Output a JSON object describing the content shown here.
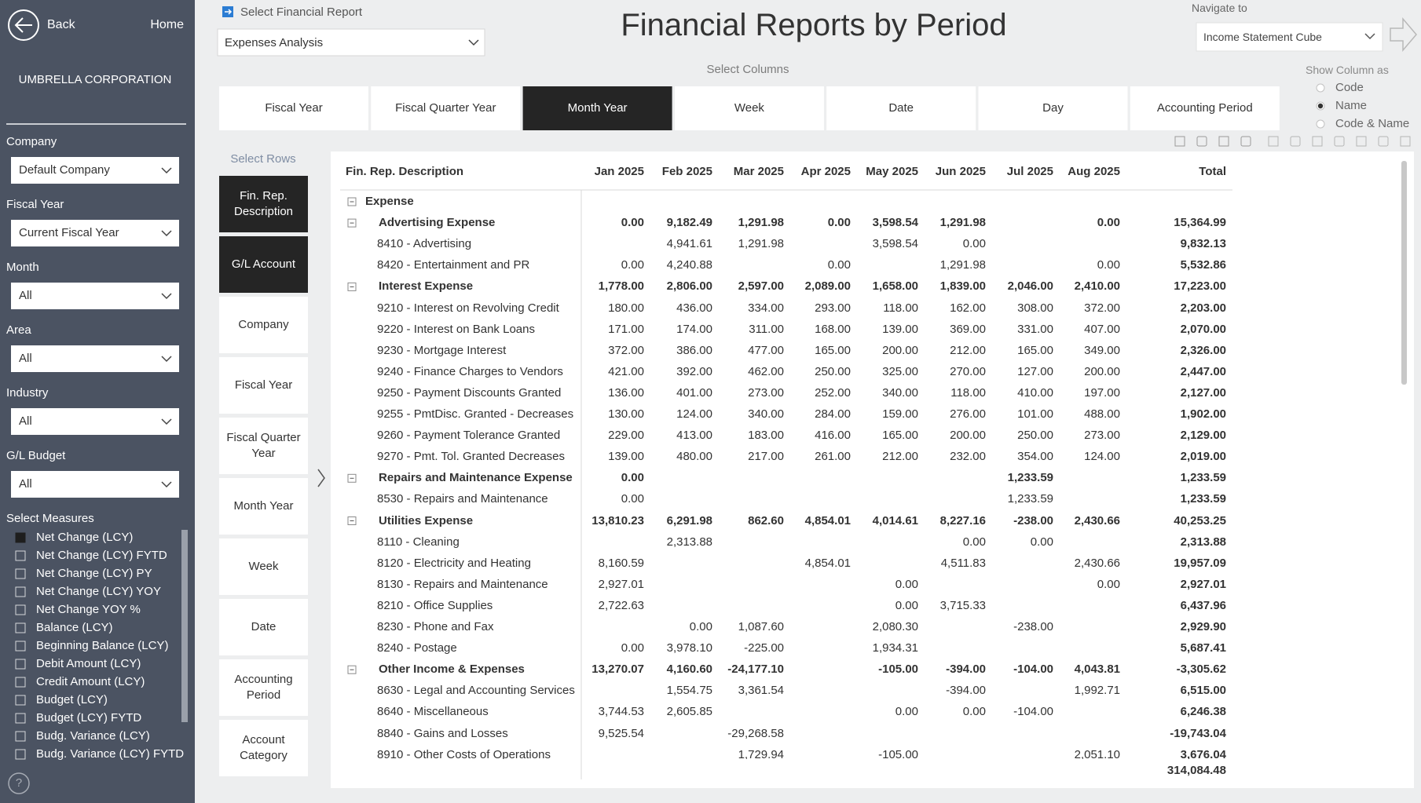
{
  "sidebar": {
    "back": "Back",
    "home": "Home",
    "company": "UMBRELLA CORPORATION",
    "filters": [
      {
        "label": "Company",
        "value": "Default Company"
      },
      {
        "label": "Fiscal Year",
        "value": "Current Fiscal Year"
      },
      {
        "label": "Month",
        "value": "All"
      },
      {
        "label": "Area",
        "value": "All"
      },
      {
        "label": "Industry",
        "value": "All"
      },
      {
        "label": "G/L Budget",
        "value": "All"
      }
    ],
    "measures_title": "Select Measures",
    "measures": [
      "Net Change (LCY)",
      "Net Change (LCY) FYTD",
      "Net Change (LCY) PY",
      "Net Change (LCY) YOY",
      "Net Change YOY %",
      "Balance (LCY)",
      "Beginning Balance (LCY)",
      "Debit Amount (LCY)",
      "Credit Amount (LCY)",
      "Budget (LCY)",
      "Budget (LCY) FYTD",
      "Budg. Variance (LCY)",
      "Budg. Variance (LCY) FYTD"
    ],
    "selected_measure": 0,
    "help": "?"
  },
  "header": {
    "report_label": "Select Financial Report",
    "report_value": "Expenses Analysis",
    "title": "Financial Reports by Period",
    "navigate_label": "Navigate to",
    "navigate_value": "Income Statement Cube"
  },
  "columns": {
    "label": "Select Columns",
    "options": [
      "Fiscal Year",
      "Fiscal Quarter Year",
      "Month Year",
      "Week",
      "Date",
      "Day",
      "Accounting Period"
    ],
    "active": 2
  },
  "show_column": {
    "label": "Show Column as",
    "options": [
      "Code",
      "Name",
      "Code & Name"
    ],
    "selected": 1
  },
  "rows_selector": {
    "label": "Select Rows",
    "options": [
      "Fin. Rep. Description",
      "G/L Account",
      "Company",
      "Fiscal Year",
      "Fiscal Quarter Year",
      "Month Year",
      "Week",
      "Date",
      "Accounting Period",
      "Account Category"
    ],
    "active": [
      0,
      1
    ]
  },
  "table": {
    "headers": [
      "Fin. Rep. Description",
      "Jan 2025",
      "Feb 2025",
      "Mar 2025",
      "Apr 2025",
      "May 2025",
      "Jun 2025",
      "Jul 2025",
      "Aug 2025",
      "Total"
    ],
    "rows": [
      {
        "label": "Expense",
        "level": 0,
        "values": [
          null,
          null,
          null,
          null,
          null,
          null,
          null,
          null,
          null
        ]
      },
      {
        "label": "Advertising Expense",
        "level": 1,
        "values": [
          "0.00",
          "9,182.49",
          "1,291.98",
          "0.00",
          "3,598.54",
          "1,291.98",
          null,
          "0.00",
          "15,364.99"
        ]
      },
      {
        "label": "8410 - Advertising",
        "level": 2,
        "values": [
          null,
          "4,941.61",
          "1,291.98",
          null,
          "3,598.54",
          "0.00",
          null,
          null,
          "9,832.13"
        ]
      },
      {
        "label": "8420 - Entertainment and PR",
        "level": 2,
        "values": [
          "0.00",
          "4,240.88",
          null,
          "0.00",
          null,
          "1,291.98",
          null,
          "0.00",
          "5,532.86"
        ]
      },
      {
        "label": "Interest Expense",
        "level": 1,
        "values": [
          "1,778.00",
          "2,806.00",
          "2,597.00",
          "2,089.00",
          "1,658.00",
          "1,839.00",
          "2,046.00",
          "2,410.00",
          "17,223.00"
        ]
      },
      {
        "label": "9210 - Interest on Revolving Credit",
        "level": 2,
        "values": [
          "180.00",
          "436.00",
          "334.00",
          "293.00",
          "118.00",
          "162.00",
          "308.00",
          "372.00",
          "2,203.00"
        ]
      },
      {
        "label": "9220 - Interest on Bank Loans",
        "level": 2,
        "values": [
          "171.00",
          "174.00",
          "311.00",
          "168.00",
          "139.00",
          "369.00",
          "331.00",
          "407.00",
          "2,070.00"
        ]
      },
      {
        "label": "9230 - Mortgage Interest",
        "level": 2,
        "values": [
          "372.00",
          "386.00",
          "477.00",
          "165.00",
          "200.00",
          "212.00",
          "165.00",
          "349.00",
          "2,326.00"
        ]
      },
      {
        "label": "9240 - Finance Charges to Vendors",
        "level": 2,
        "values": [
          "421.00",
          "392.00",
          "462.00",
          "250.00",
          "325.00",
          "270.00",
          "127.00",
          "200.00",
          "2,447.00"
        ]
      },
      {
        "label": "9250 - Payment Discounts Granted",
        "level": 2,
        "values": [
          "136.00",
          "401.00",
          "273.00",
          "252.00",
          "340.00",
          "118.00",
          "410.00",
          "197.00",
          "2,127.00"
        ]
      },
      {
        "label": "9255 - PmtDisc. Granted - Decreases",
        "level": 2,
        "values": [
          "130.00",
          "124.00",
          "340.00",
          "284.00",
          "159.00",
          "276.00",
          "101.00",
          "488.00",
          "1,902.00"
        ]
      },
      {
        "label": "9260 - Payment Tolerance Granted",
        "level": 2,
        "values": [
          "229.00",
          "413.00",
          "183.00",
          "416.00",
          "165.00",
          "200.00",
          "250.00",
          "273.00",
          "2,129.00"
        ]
      },
      {
        "label": "9270 - Pmt. Tol. Granted Decreases",
        "level": 2,
        "values": [
          "139.00",
          "480.00",
          "217.00",
          "261.00",
          "212.00",
          "232.00",
          "354.00",
          "124.00",
          "2,019.00"
        ]
      },
      {
        "label": "Repairs and Maintenance Expense",
        "level": 1,
        "values": [
          "0.00",
          null,
          null,
          null,
          null,
          null,
          "1,233.59",
          null,
          "1,233.59"
        ]
      },
      {
        "label": "8530 - Repairs and Maintenance",
        "level": 2,
        "values": [
          "0.00",
          null,
          null,
          null,
          null,
          null,
          "1,233.59",
          null,
          "1,233.59"
        ]
      },
      {
        "label": "Utilities Expense",
        "level": 1,
        "values": [
          "13,810.23",
          "6,291.98",
          "862.60",
          "4,854.01",
          "4,014.61",
          "8,227.16",
          "-238.00",
          "2,430.66",
          "40,253.25"
        ]
      },
      {
        "label": "8110 - Cleaning",
        "level": 2,
        "values": [
          null,
          "2,313.88",
          null,
          null,
          null,
          "0.00",
          "0.00",
          null,
          "2,313.88"
        ]
      },
      {
        "label": "8120 - Electricity and Heating",
        "level": 2,
        "values": [
          "8,160.59",
          null,
          null,
          "4,854.01",
          null,
          "4,511.83",
          null,
          "2,430.66",
          "19,957.09"
        ]
      },
      {
        "label": "8130 - Repairs and Maintenance",
        "level": 2,
        "values": [
          "2,927.01",
          null,
          null,
          null,
          "0.00",
          null,
          null,
          "0.00",
          "2,927.01"
        ]
      },
      {
        "label": "8210 - Office Supplies",
        "level": 2,
        "values": [
          "2,722.63",
          null,
          null,
          null,
          "0.00",
          "3,715.33",
          null,
          null,
          "6,437.96"
        ]
      },
      {
        "label": "8230 - Phone and Fax",
        "level": 2,
        "values": [
          null,
          "0.00",
          "1,087.60",
          null,
          "2,080.30",
          null,
          "-238.00",
          null,
          "2,929.90"
        ]
      },
      {
        "label": "8240 - Postage",
        "level": 2,
        "values": [
          "0.00",
          "3,978.10",
          "-225.00",
          null,
          "1,934.31",
          null,
          null,
          null,
          "5,687.41"
        ]
      },
      {
        "label": "Other Income & Expenses",
        "level": 1,
        "values": [
          "13,270.07",
          "4,160.60",
          "-24,177.10",
          null,
          "-105.00",
          "-394.00",
          "-104.00",
          "4,043.81",
          "-3,305.62"
        ]
      },
      {
        "label": "8630 - Legal and Accounting Services",
        "level": 2,
        "values": [
          null,
          "1,554.75",
          "3,361.54",
          null,
          null,
          "-394.00",
          null,
          "1,992.71",
          "6,515.00"
        ]
      },
      {
        "label": "8640 - Miscellaneous",
        "level": 2,
        "values": [
          "3,744.53",
          "2,605.85",
          null,
          null,
          "0.00",
          "0.00",
          "-104.00",
          null,
          "6,246.38"
        ]
      },
      {
        "label": "8840 - Gains and Losses",
        "level": 2,
        "values": [
          "9,525.54",
          null,
          "-29,268.58",
          null,
          null,
          null,
          null,
          null,
          "-19,743.04"
        ]
      },
      {
        "label": "8910 - Other Costs of Operations",
        "level": 2,
        "values": [
          null,
          null,
          "1,729.94",
          null,
          "-105.00",
          null,
          null,
          "2,051.10",
          "3,676.04"
        ]
      }
    ],
    "grand_total": "314,084.48"
  }
}
